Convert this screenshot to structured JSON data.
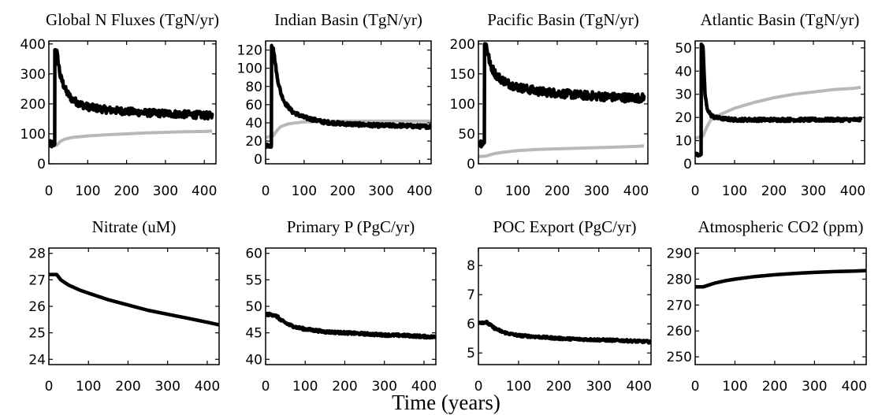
{
  "figure": {
    "xlabel": "Time (years)"
  },
  "chart_data": [
    {
      "type": "line",
      "title": "Global N Fluxes (TgN/yr)",
      "xlim": [
        0,
        430
      ],
      "ylim": [
        0,
        410
      ],
      "xticks": [
        0,
        100,
        200,
        300,
        400
      ],
      "xtick_labels": [
        "0",
        "100",
        "200",
        "300",
        "400"
      ],
      "yticks": [
        0,
        100,
        200,
        300,
        400
      ],
      "ytick_labels": [
        "0",
        "100",
        "200",
        "300",
        "400"
      ],
      "series": [
        {
          "color": "#000000",
          "noise": 12,
          "x": [
            0,
            15,
            15.5,
            20,
            30,
            45,
            60,
            80,
            100,
            150,
            200,
            250,
            300,
            350,
            400,
            420
          ],
          "y": [
            65,
            65,
            380,
            375,
            290,
            240,
            215,
            200,
            190,
            180,
            175,
            170,
            168,
            165,
            162,
            160
          ]
        },
        {
          "color": "#b8b8b8",
          "noise": 0,
          "x": [
            0,
            20,
            30,
            40,
            60,
            100,
            150,
            200,
            250,
            300,
            350,
            400,
            420
          ],
          "y": [
            60,
            62,
            75,
            82,
            88,
            93,
            97,
            100,
            103,
            105,
            107,
            108,
            109
          ]
        }
      ]
    },
    {
      "type": "line",
      "title": "Indian Basin (TgN/yr)",
      "xlim": [
        0,
        430
      ],
      "ylim": [
        -5,
        130
      ],
      "xticks": [
        0,
        100,
        200,
        300,
        400
      ],
      "xtick_labels": [
        "0",
        "100",
        "200",
        "300",
        "400"
      ],
      "yticks": [
        0,
        20,
        40,
        60,
        80,
        100,
        120
      ],
      "ytick_labels": [
        "0",
        "20",
        "40",
        "60",
        "80",
        "100",
        "120"
      ],
      "series": [
        {
          "color": "#000000",
          "noise": 2,
          "x": [
            0,
            15,
            15.5,
            20,
            30,
            40,
            50,
            70,
            100,
            150,
            200,
            250,
            300,
            350,
            400,
            430
          ],
          "y": [
            15,
            15,
            125,
            122,
            90,
            72,
            62,
            52,
            46,
            41,
            39,
            38,
            37,
            37,
            36,
            36
          ]
        },
        {
          "color": "#b8b8b8",
          "noise": 0,
          "x": [
            0,
            20,
            30,
            40,
            60,
            100,
            150,
            200,
            250,
            300,
            350,
            400,
            430
          ],
          "y": [
            24,
            26,
            32,
            36,
            39,
            41,
            41.5,
            42,
            42,
            42,
            42,
            42,
            42
          ]
        }
      ]
    },
    {
      "type": "line",
      "title": "Pacific Basin (TgN/yr)",
      "xlim": [
        0,
        430
      ],
      "ylim": [
        0,
        205
      ],
      "xticks": [
        0,
        100,
        200,
        300,
        400
      ],
      "xtick_labels": [
        "0",
        "100",
        "200",
        "300",
        "400"
      ],
      "yticks": [
        0,
        50,
        100,
        150,
        200
      ],
      "ytick_labels": [
        "0",
        "50",
        "100",
        "150",
        "200"
      ],
      "series": [
        {
          "color": "#000000",
          "noise": 7,
          "x": [
            0,
            15,
            15.5,
            20,
            30,
            45,
            60,
            80,
            100,
            150,
            200,
            250,
            300,
            350,
            400,
            420
          ],
          "y": [
            35,
            35,
            200,
            198,
            165,
            148,
            140,
            133,
            128,
            121,
            118,
            115,
            113,
            111,
            110,
            110
          ]
        },
        {
          "color": "#b8b8b8",
          "noise": 0,
          "x": [
            0,
            20,
            40,
            60,
            100,
            150,
            200,
            250,
            300,
            350,
            400,
            420
          ],
          "y": [
            12,
            13,
            17,
            19,
            22,
            24,
            25,
            26,
            27,
            28,
            29,
            30
          ]
        }
      ]
    },
    {
      "type": "line",
      "title": "Atlantic Basin (TgN/yr)",
      "xlim": [
        0,
        430
      ],
      "ylim": [
        0,
        53
      ],
      "xticks": [
        0,
        100,
        200,
        300,
        400
      ],
      "xtick_labels": [
        "0",
        "100",
        "200",
        "300",
        "400"
      ],
      "yticks": [
        0,
        10,
        20,
        30,
        40,
        50
      ],
      "ytick_labels": [
        "0",
        "10",
        "20",
        "30",
        "40",
        "50"
      ],
      "series": [
        {
          "color": "#000000",
          "noise": 0.7,
          "x": [
            0,
            15,
            15.5,
            20,
            25,
            30,
            40,
            50,
            70,
            100,
            150,
            200,
            300,
            400,
            420
          ],
          "y": [
            4,
            4,
            51,
            50,
            30,
            24,
            21,
            20,
            19.5,
            19,
            19,
            19,
            19,
            19,
            19
          ]
        },
        {
          "color": "#b8b8b8",
          "noise": 0,
          "x": [
            0,
            20,
            30,
            40,
            60,
            80,
            100,
            150,
            200,
            250,
            300,
            350,
            400,
            420
          ],
          "y": [
            11,
            12,
            16,
            19,
            21,
            22.5,
            24,
            26.5,
            28.5,
            30,
            31,
            32,
            32.5,
            33
          ]
        }
      ]
    },
    {
      "type": "line",
      "title": "Nitrate (uM)",
      "xlim": [
        0,
        430
      ],
      "ylim": [
        23.8,
        28.2
      ],
      "xticks": [
        0,
        100,
        200,
        300,
        400
      ],
      "xtick_labels": [
        "0",
        "100",
        "200",
        "300",
        "400"
      ],
      "yticks": [
        24,
        25,
        26,
        27,
        28
      ],
      "ytick_labels": [
        "24",
        "25",
        "26",
        "27",
        "28"
      ],
      "series": [
        {
          "color": "#000000",
          "noise": 0,
          "x": [
            0,
            20,
            30,
            50,
            80,
            100,
            150,
            200,
            250,
            300,
            350,
            400,
            430
          ],
          "y": [
            27.2,
            27.2,
            27.0,
            26.8,
            26.6,
            26.5,
            26.25,
            26.05,
            25.85,
            25.7,
            25.55,
            25.4,
            25.3
          ]
        }
      ]
    },
    {
      "type": "line",
      "title": "Primary P (PgC/yr)",
      "xlim": [
        0,
        430
      ],
      "ylim": [
        39,
        61
      ],
      "xticks": [
        0,
        100,
        200,
        300,
        400
      ],
      "xtick_labels": [
        "0",
        "100",
        "200",
        "300",
        "400"
      ],
      "yticks": [
        40,
        45,
        50,
        55,
        60
      ],
      "ytick_labels": [
        "40",
        "45",
        "50",
        "55",
        "60"
      ],
      "series": [
        {
          "color": "#000000",
          "noise": 0.25,
          "x": [
            0,
            20,
            30,
            40,
            60,
            80,
            100,
            150,
            200,
            250,
            300,
            350,
            400,
            430
          ],
          "y": [
            48.5,
            48.4,
            48.0,
            47.3,
            46.5,
            46.0,
            45.7,
            45.2,
            45.0,
            44.8,
            44.6,
            44.5,
            44.3,
            44.2
          ]
        }
      ]
    },
    {
      "type": "line",
      "title": "POC Export (PgC/yr)",
      "xlim": [
        0,
        430
      ],
      "ylim": [
        4.6,
        8.6
      ],
      "xticks": [
        0,
        100,
        200,
        300,
        400
      ],
      "xtick_labels": [
        "0",
        "100",
        "200",
        "300",
        "400"
      ],
      "yticks": [
        5,
        6,
        7,
        8
      ],
      "ytick_labels": [
        "5",
        "6",
        "7",
        "8"
      ],
      "series": [
        {
          "color": "#000000",
          "noise": 0.04,
          "x": [
            0,
            20,
            30,
            40,
            60,
            80,
            100,
            150,
            200,
            250,
            300,
            350,
            400,
            430
          ],
          "y": [
            6.05,
            6.05,
            5.95,
            5.85,
            5.72,
            5.65,
            5.6,
            5.55,
            5.5,
            5.47,
            5.45,
            5.43,
            5.4,
            5.38
          ]
        }
      ]
    },
    {
      "type": "line",
      "title": "Atmospheric CO2 (ppm)",
      "xlim": [
        0,
        430
      ],
      "ylim": [
        247,
        292
      ],
      "xticks": [
        0,
        100,
        200,
        300,
        400
      ],
      "xtick_labels": [
        "0",
        "100",
        "200",
        "300",
        "400"
      ],
      "yticks": [
        250,
        260,
        270,
        280,
        290
      ],
      "ytick_labels": [
        "250",
        "260",
        "270",
        "280",
        "290"
      ],
      "series": [
        {
          "color": "#000000",
          "noise": 0,
          "x": [
            0,
            20,
            30,
            50,
            80,
            100,
            150,
            200,
            250,
            300,
            350,
            400,
            430
          ],
          "y": [
            277,
            277,
            277.5,
            278.5,
            279.5,
            280,
            281,
            281.7,
            282.2,
            282.6,
            282.9,
            283.1,
            283.3
          ]
        }
      ]
    }
  ]
}
